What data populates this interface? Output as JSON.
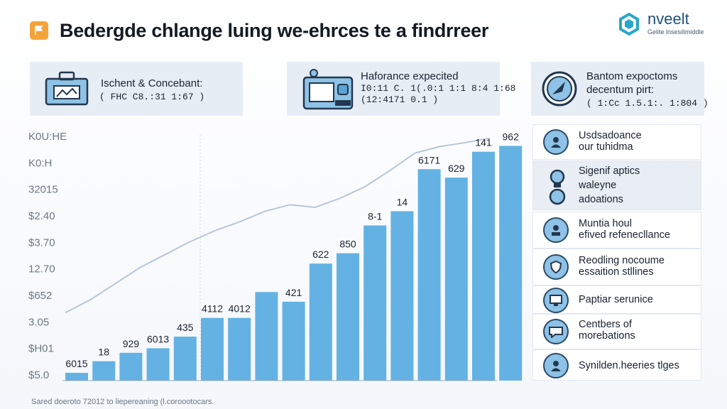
{
  "header": {
    "title": "Bedergde chlange luing we-ehrces te a findrreer",
    "logo_icon": "flag-icon",
    "brand_name": "nveelt",
    "brand_sub": "Gelite lnsesilimiddle"
  },
  "cards": [
    {
      "title": "Ischent & Concebant:",
      "value": "( FHC C8.:31 1:67 )",
      "icon": "briefcase-icon"
    },
    {
      "title": "Haforance expecited",
      "value": "I0:11 C. 1(.0:1 1:1 8:4 1:68\n(12:4171 0.1 )",
      "icon": "printer-icon"
    },
    {
      "title": "Bantom expoctoms",
      "title2": "decentum pirt:",
      "value": "( 1:Cc 1.5.1:. 1:804 )",
      "icon": "compass-icon"
    }
  ],
  "chart_data": {
    "type": "bar",
    "y_tick_labels": [
      "$5.0",
      "$H01",
      "3.05",
      "$652",
      "12.70",
      "$3.70",
      "$2.40",
      "32015",
      "K0:H",
      "K0U:HE"
    ],
    "values": [
      12,
      30,
      43,
      50,
      68,
      97,
      97,
      137,
      122,
      181,
      197,
      240,
      262,
      327,
      314,
      354,
      363
    ],
    "data_labels": [
      "6015",
      "18",
      "929",
      "6013",
      "435",
      "4112",
      "4012",
      "",
      "421",
      "622",
      "850",
      "8-1",
      "14",
      "6171",
      "629",
      "141",
      "962"
    ],
    "trend_line": [
      105,
      125,
      150,
      175,
      195,
      215,
      232,
      246,
      262,
      272,
      268,
      282,
      300,
      325,
      352,
      362,
      368,
      375
    ]
  },
  "sidebar": {
    "items": [
      {
        "label": "Usdsadoance\nour tuhidma",
        "icon": "person-icon"
      },
      {
        "label": "Sigenif aptics\nwaleyne\nadoations",
        "icon": "lightbulb-icon"
      },
      {
        "label": "Muntia houl\nefived refenecllance",
        "icon": "user-icon"
      },
      {
        "label": "Reodling nocoume\nessaition stllines",
        "icon": "shield-icon"
      },
      {
        "label": "Paptiar serunice",
        "icon": "monitor-icon"
      },
      {
        "label": "Centbers of\nmorebations",
        "icon": "chat-icon"
      },
      {
        "label": "Synilden.heeries tlges",
        "icon": "person-icon"
      }
    ]
  },
  "footer": "Sared doeroto 72012 to liepereaning (l.coroootocars."
}
